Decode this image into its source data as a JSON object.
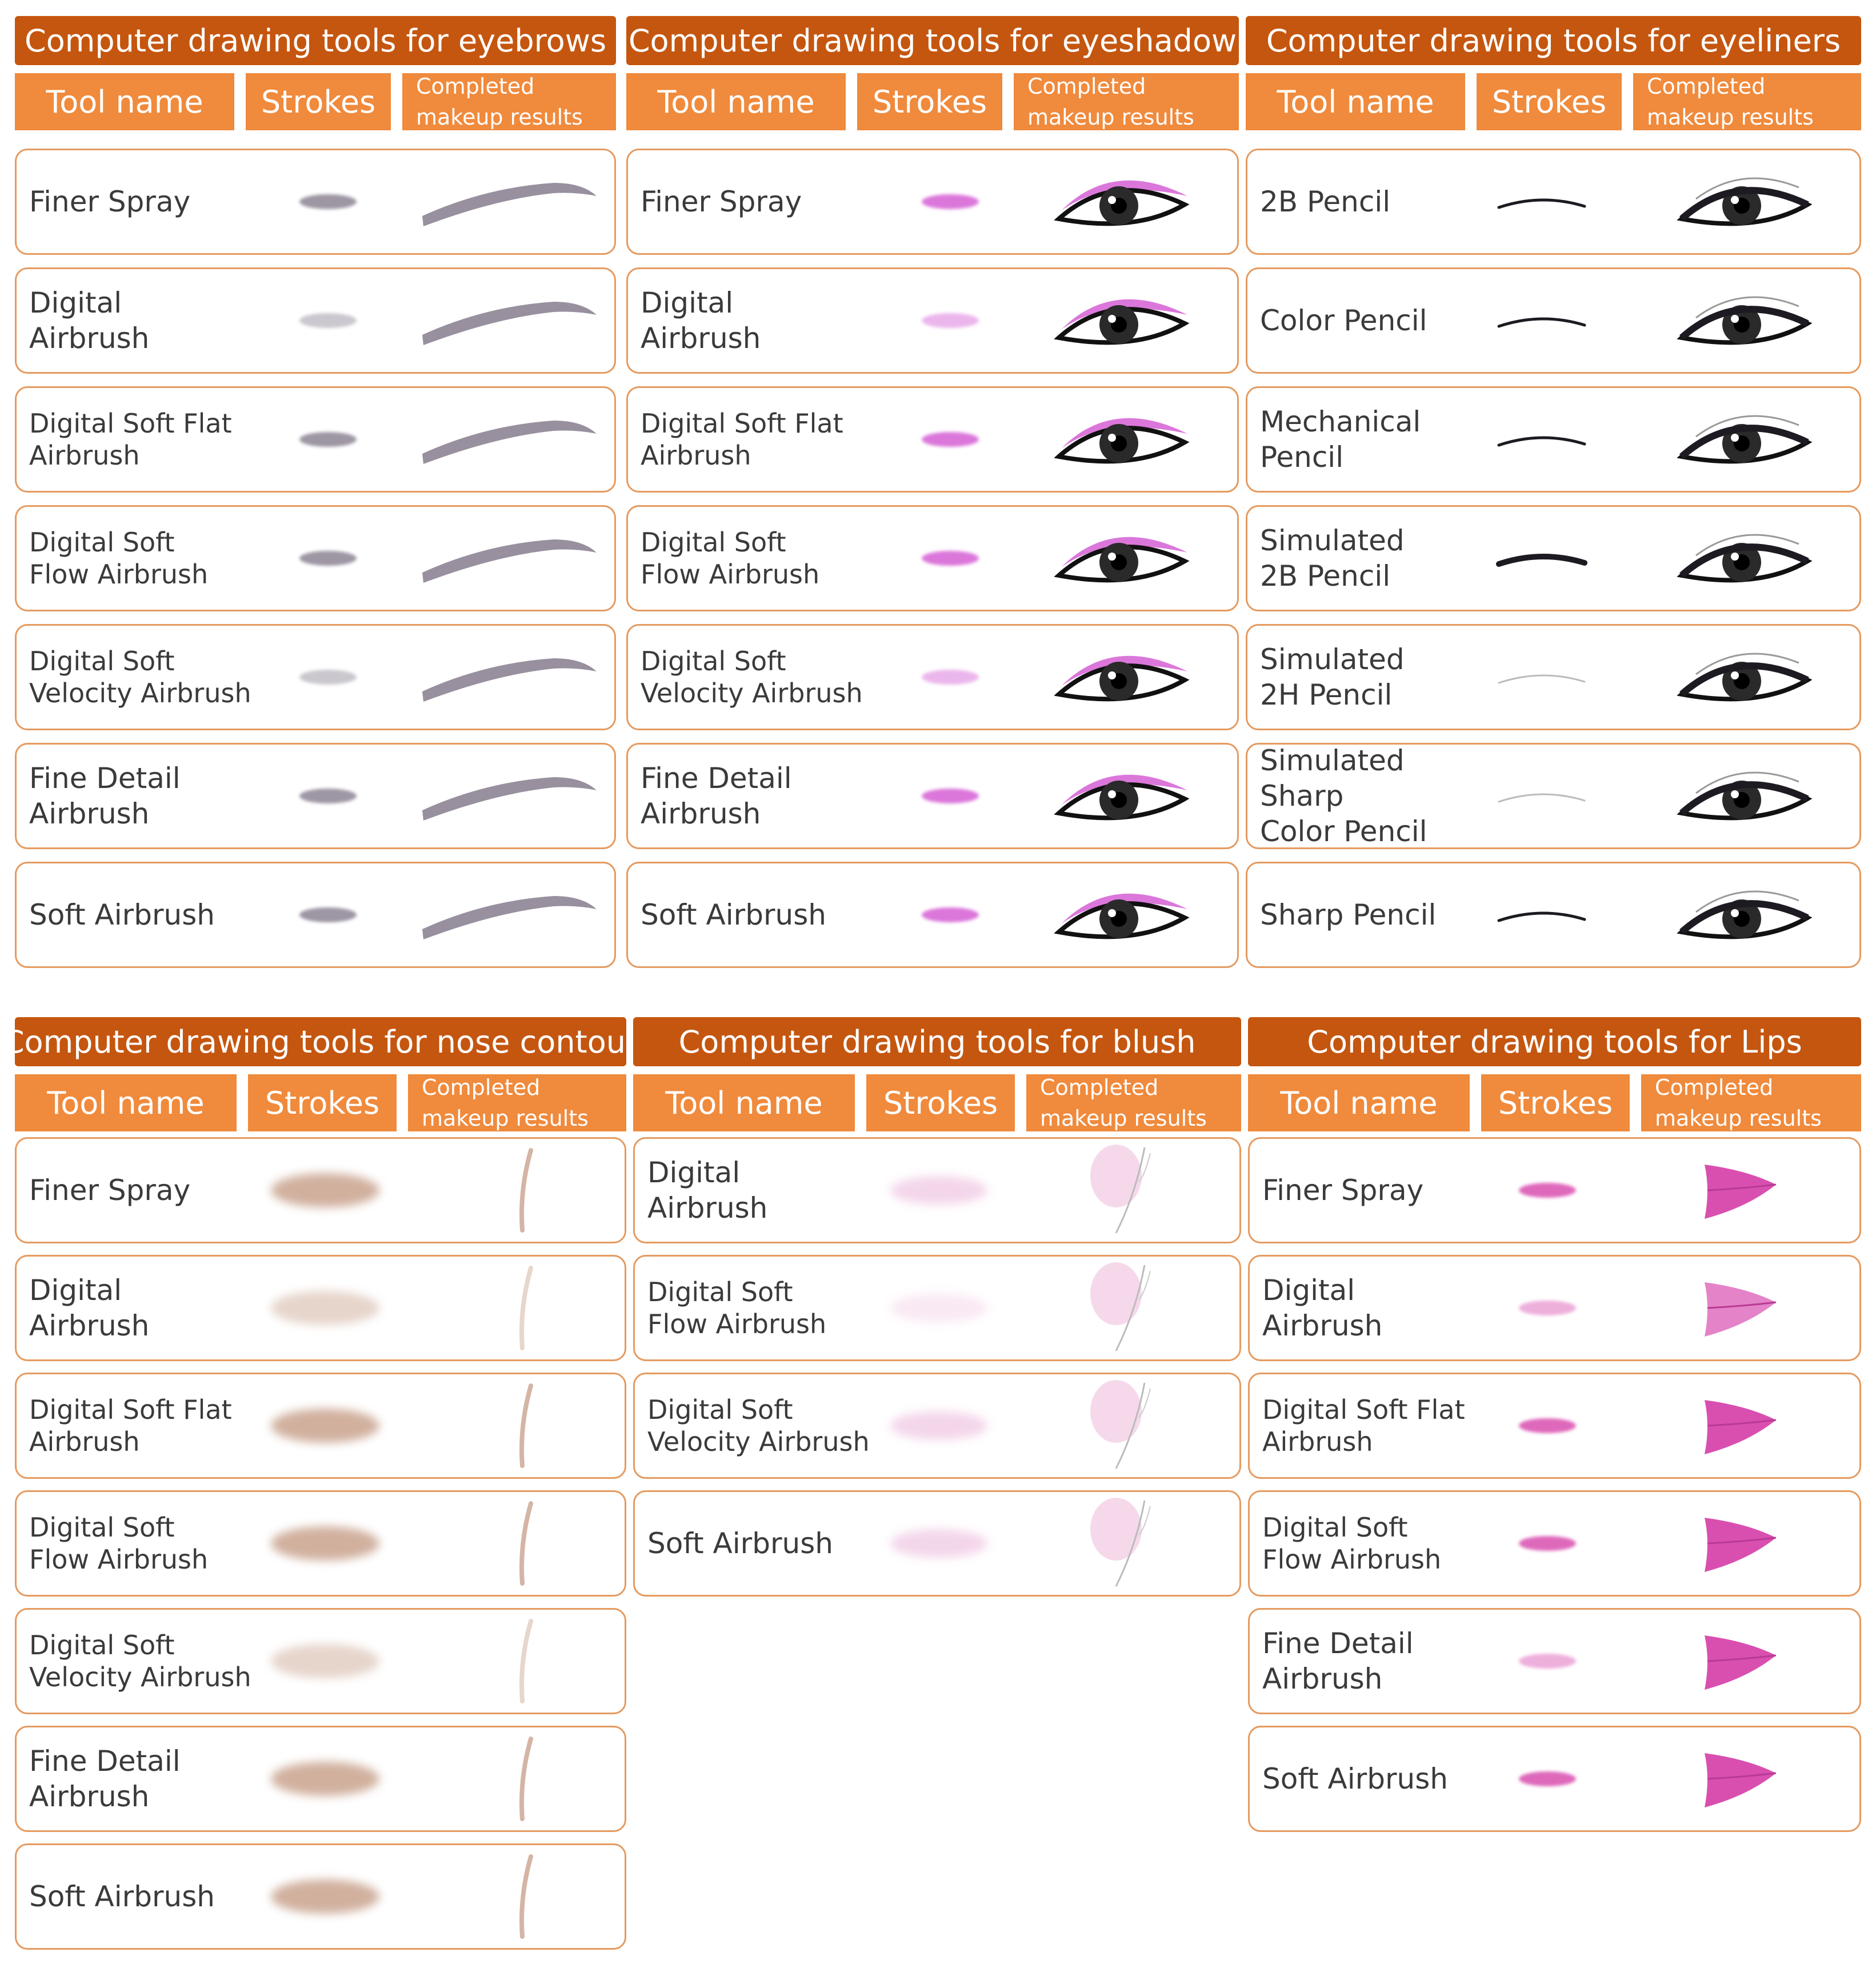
{
  "column_headers": {
    "tool": "Tool name",
    "strokes": "Strokes",
    "result_line1": "Completed",
    "result_line2": "makeup results"
  },
  "panels": {
    "eyebrows": {
      "title": "Computer drawing tools for eyebrows",
      "color": "#8d8494",
      "rows": [
        {
          "name": "Finer Spray"
        },
        {
          "name": "Digital\nAirbrush"
        },
        {
          "name": "Digital Soft Flat\nAirbrush"
        },
        {
          "name": "Digital Soft\nFlow Airbrush"
        },
        {
          "name": "Digital Soft\nVelocity Airbrush"
        },
        {
          "name": "Fine Detail\nAirbrush"
        },
        {
          "name": "Soft Airbrush"
        }
      ]
    },
    "eyeshadow": {
      "title": "Computer drawing tools for eyeshadow",
      "color": "#d55fd5",
      "rows": [
        {
          "name": "Finer Spray"
        },
        {
          "name": "Digital\nAirbrush"
        },
        {
          "name": "Digital Soft Flat\nAirbrush"
        },
        {
          "name": "Digital Soft\nFlow Airbrush"
        },
        {
          "name": "Digital Soft\nVelocity Airbrush"
        },
        {
          "name": "Fine Detail\nAirbrush"
        },
        {
          "name": "Soft Airbrush"
        }
      ]
    },
    "eyeliners": {
      "title": "Computer drawing tools for eyeliners",
      "color": "#1e1a22",
      "rows": [
        {
          "name": "2B Pencil"
        },
        {
          "name": "Color Pencil"
        },
        {
          "name": "Mechanical\nPencil"
        },
        {
          "name": "Simulated\n2B Pencil"
        },
        {
          "name": "Simulated\n2H Pencil"
        },
        {
          "name": "Simulated\nSharp\nColor Pencil"
        },
        {
          "name": "Sharp Pencil"
        }
      ]
    },
    "nose": {
      "title": "Computer drawing tools for nose contour",
      "color": "#c9a38e",
      "rows": [
        {
          "name": "Finer Spray"
        },
        {
          "name": "Digital\nAirbrush"
        },
        {
          "name": "Digital Soft Flat\nAirbrush"
        },
        {
          "name": "Digital Soft\nFlow Airbrush"
        },
        {
          "name": "Digital Soft\nVelocity Airbrush"
        },
        {
          "name": "Fine Detail\nAirbrush"
        },
        {
          "name": "Soft Airbrush"
        }
      ]
    },
    "blush": {
      "title": "Computer drawing tools for blush",
      "color": "#f2cfe6",
      "rows": [
        {
          "name": "Digital\nAirbrush"
        },
        {
          "name": "Digital Soft\nFlow Airbrush"
        },
        {
          "name": "Digital Soft\nVelocity Airbrush"
        },
        {
          "name": "Soft Airbrush"
        }
      ]
    },
    "lips": {
      "title": "Computer drawing tools for Lips",
      "color": "#d94fb0",
      "rows": [
        {
          "name": "Finer Spray"
        },
        {
          "name": "Digital\nAirbrush"
        },
        {
          "name": "Digital Soft Flat\nAirbrush"
        },
        {
          "name": "Digital Soft\nFlow Airbrush"
        },
        {
          "name": "Fine Detail\nAirbrush"
        },
        {
          "name": "Soft Airbrush"
        }
      ]
    }
  }
}
